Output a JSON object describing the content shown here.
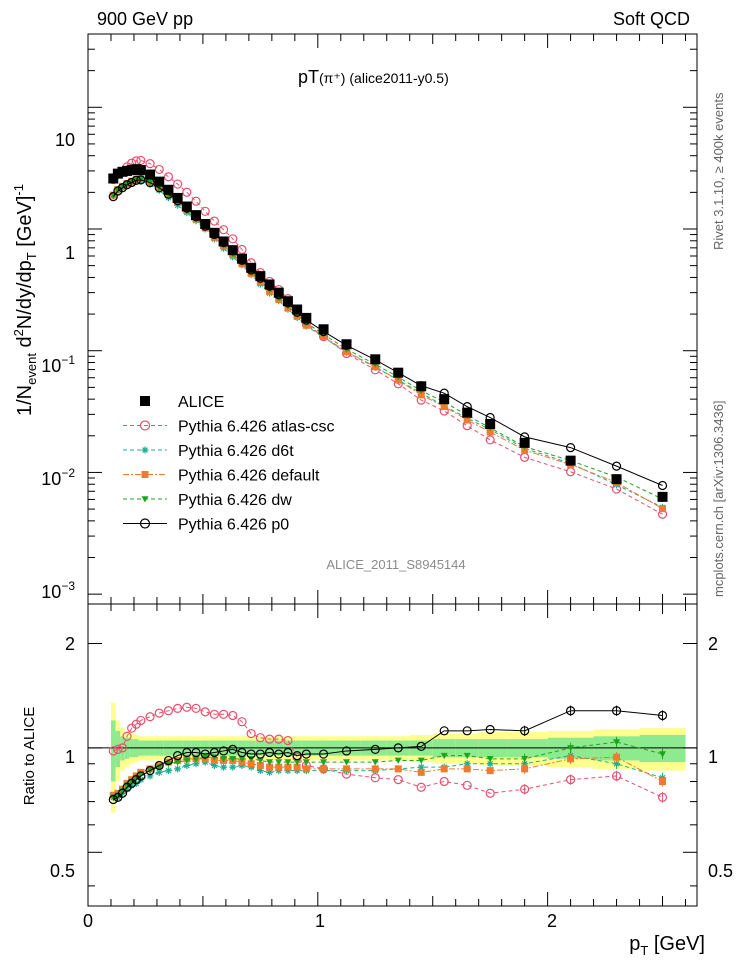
{
  "header": {
    "left": "900 GeV pp",
    "right": "Soft QCD",
    "title_main": "pT",
    "title_particle": "(π⁺)",
    "title_tag": "(alice2011-y0.5)",
    "watermark": "ALICE_2011_S8945144",
    "side_top": "Rivet 3.1.10, ≥ 400k events",
    "side_bottom": "mcplots.cern.ch [arXiv:1306.3436]"
  },
  "axes": {
    "ylabel_main": "1/N_event d²N/dy/dp_T [GeV]⁻¹",
    "ylabel_ratio": "Ratio to ALICE",
    "xlabel": "p_T [GeV]",
    "x_ticks": [
      "0",
      "1",
      "2"
    ],
    "y_ticks_main": [
      "10⁻³",
      "10⁻²",
      "10⁻¹",
      "1",
      "10"
    ],
    "y_ticks_ratio": [
      "0.5",
      "1",
      "2"
    ]
  },
  "chart_data": {
    "type": "scatter",
    "title": "pT(π⁺) (alice2011-y0.5)",
    "xlabel": "p_T [GeV]",
    "ylabel": "1/N_event d²N/dy/dp_T [GeV]⁻¹",
    "xlim": [
      0,
      2.65
    ],
    "ylim": [
      0.00083,
      40
    ],
    "ratio_ylim": [
      0.35,
      2.6
    ],
    "x": [
      0.11,
      0.13,
      0.15,
      0.17,
      0.19,
      0.21,
      0.23,
      0.27,
      0.31,
      0.35,
      0.39,
      0.43,
      0.47,
      0.51,
      0.55,
      0.59,
      0.63,
      0.67,
      0.71,
      0.75,
      0.79,
      0.83,
      0.87,
      0.91,
      0.95,
      1.025,
      1.125,
      1.25,
      1.35,
      1.45,
      1.55,
      1.65,
      1.75,
      1.9,
      2.1,
      2.3,
      2.5
    ],
    "series": [
      {
        "name": "ALICE",
        "color": "#000000",
        "marker": "square-filled",
        "values": [
          2.6,
          2.85,
          2.95,
          3.0,
          3.05,
          3.1,
          3.05,
          2.8,
          2.45,
          2.1,
          1.8,
          1.53,
          1.3,
          1.1,
          0.93,
          0.79,
          0.67,
          0.57,
          0.48,
          0.41,
          0.35,
          0.3,
          0.255,
          0.218,
          0.186,
          0.15,
          0.113,
          0.085,
          0.066,
          0.051,
          0.04,
          0.031,
          0.025,
          0.0175,
          0.0125,
          0.0088,
          0.0063
        ]
      },
      {
        "name": "Pythia 6.426 atlas-csc",
        "color": "#e8506e",
        "marker": "circle-open",
        "dash": "4,3",
        "ratios": [
          0.98,
          0.99,
          1.0,
          1.08,
          1.14,
          1.17,
          1.2,
          1.23,
          1.26,
          1.28,
          1.3,
          1.31,
          1.3,
          1.27,
          1.25,
          1.25,
          1.24,
          1.19,
          1.1,
          1.07,
          1.06,
          1.06,
          1.05,
          0.94,
          0.89,
          0.87,
          0.84,
          0.82,
          0.81,
          0.77,
          0.8,
          0.78,
          0.74,
          0.76,
          0.81,
          0.83,
          0.72
        ]
      },
      {
        "name": "Pythia 6.426 d6t",
        "color": "#1aaf8f",
        "marker": "star",
        "dash": "4,3",
        "ratios": [
          0.72,
          0.72,
          0.74,
          0.76,
          0.78,
          0.79,
          0.81,
          0.83,
          0.85,
          0.86,
          0.87,
          0.89,
          0.9,
          0.91,
          0.89,
          0.88,
          0.88,
          0.89,
          0.88,
          0.86,
          0.85,
          0.86,
          0.86,
          0.86,
          0.86,
          0.86,
          0.86,
          0.86,
          0.87,
          0.88,
          0.88,
          0.9,
          0.9,
          0.9,
          0.95,
          0.9,
          0.82
        ]
      },
      {
        "name": "Pythia 6.426 default",
        "color": "#f07b30",
        "marker": "square-filled",
        "dash": "6,2,2,2",
        "ratios": [
          0.73,
          0.74,
          0.76,
          0.79,
          0.81,
          0.83,
          0.85,
          0.87,
          0.89,
          0.91,
          0.92,
          0.93,
          0.93,
          0.93,
          0.92,
          0.92,
          0.92,
          0.91,
          0.9,
          0.89,
          0.88,
          0.88,
          0.88,
          0.88,
          0.87,
          0.87,
          0.87,
          0.87,
          0.87,
          0.85,
          0.87,
          0.87,
          0.86,
          0.87,
          0.93,
          0.94,
          0.8
        ]
      },
      {
        "name": "Pythia 6.426 dw",
        "color": "#1ea51e",
        "marker": "triangle-down",
        "dash": "4,3",
        "ratios": [
          0.72,
          0.73,
          0.75,
          0.78,
          0.8,
          0.82,
          0.84,
          0.86,
          0.88,
          0.9,
          0.91,
          0.92,
          0.93,
          0.94,
          0.94,
          0.93,
          0.93,
          0.93,
          0.93,
          0.92,
          0.91,
          0.91,
          0.91,
          0.91,
          0.91,
          0.91,
          0.91,
          0.91,
          0.92,
          0.92,
          0.95,
          0.95,
          0.93,
          0.93,
          1.0,
          1.04,
          0.96
        ]
      },
      {
        "name": "Pythia 6.426 p0",
        "color": "#000000",
        "marker": "circle-open",
        "dash": "",
        "ratios": [
          0.71,
          0.72,
          0.74,
          0.77,
          0.79,
          0.81,
          0.83,
          0.86,
          0.89,
          0.92,
          0.95,
          0.97,
          0.97,
          0.96,
          0.97,
          0.98,
          0.99,
          0.97,
          0.96,
          0.96,
          0.97,
          0.96,
          0.97,
          0.95,
          0.96,
          0.96,
          0.98,
          0.99,
          1.0,
          1.01,
          1.12,
          1.12,
          1.13,
          1.12,
          1.28,
          1.28,
          1.24
        ]
      }
    ],
    "legend": [
      "ALICE",
      "Pythia 6.426 atlas-csc",
      "Pythia 6.426 d6t",
      "Pythia 6.426 default",
      "Pythia 6.426 dw",
      "Pythia 6.426 p0"
    ],
    "legend_position": "bottom-left",
    "ratio_band_stat": [
      0.2,
      0.12,
      0.08,
      0.07,
      0.06,
      0.06,
      0.05,
      0.05,
      0.05,
      0.05,
      0.05,
      0.05,
      0.05,
      0.05,
      0.05,
      0.05,
      0.05,
      0.05,
      0.05,
      0.05,
      0.05,
      0.05,
      0.05,
      0.05,
      0.05,
      0.05,
      0.05,
      0.05,
      0.05,
      0.05,
      0.06,
      0.06,
      0.06,
      0.06,
      0.07,
      0.08,
      0.09
    ],
    "ratio_band_total": [
      0.35,
      0.2,
      0.14,
      0.12,
      0.1,
      0.09,
      0.08,
      0.08,
      0.08,
      0.08,
      0.08,
      0.08,
      0.08,
      0.08,
      0.08,
      0.08,
      0.08,
      0.08,
      0.08,
      0.08,
      0.08,
      0.08,
      0.08,
      0.08,
      0.08,
      0.08,
      0.08,
      0.08,
      0.08,
      0.09,
      0.1,
      0.1,
      0.11,
      0.11,
      0.12,
      0.13,
      0.14
    ]
  }
}
